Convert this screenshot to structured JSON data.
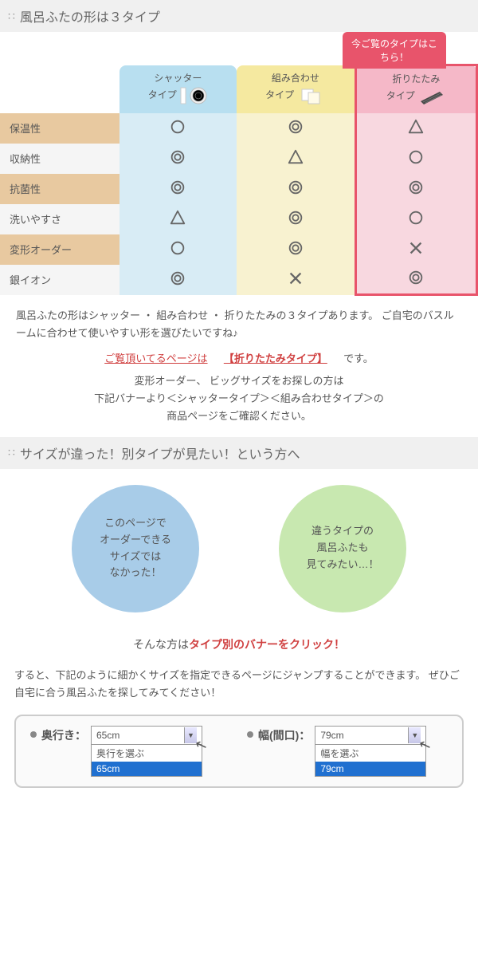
{
  "section1": {
    "title": "風呂ふたの形は３タイプ"
  },
  "callout": "今ご覧のタイプはこちら！",
  "columns": {
    "c1": "シャッター\nタイプ",
    "c2": "組み合わせ\nタイプ",
    "c3": "折りたたみ\nタイプ"
  },
  "rows": [
    {
      "label": "保温性",
      "v": [
        "single",
        "double",
        "tri"
      ]
    },
    {
      "label": "収納性",
      "v": [
        "double",
        "tri",
        "single"
      ]
    },
    {
      "label": "抗菌性",
      "v": [
        "double",
        "double",
        "double"
      ]
    },
    {
      "label": "洗いやすさ",
      "v": [
        "tri",
        "double",
        "single"
      ]
    },
    {
      "label": "変形オーダー",
      "v": [
        "single",
        "double",
        "cross"
      ]
    },
    {
      "label": "銀イオン",
      "v": [
        "double",
        "cross",
        "double"
      ]
    }
  ],
  "desc1": "風呂ふたの形はシャッター ・ 組み合わせ ・ 折りたたみの３タイプあります。 ご自宅のバスルームに合わせて使いやすい形を選びたいですね♪",
  "desc2_a": "ご覧頂いてるページは",
  "desc2_b": "【折りたたみタイプ】",
  "desc2_c": "です。",
  "desc3": "変形オーダー、 ビッグサイズをお探しの方は\n下記バナーより＜シャッタータイプ＞＜組み合わせタイプ＞の\n商品ページをご確認ください。",
  "section2": {
    "title": "サイズが違った！別タイプが見たい！という方へ"
  },
  "circle1": "このページで\nオーダーできる\nサイズでは\nなかった！",
  "circle2": "違うタイプの\n風呂ふたも\n見てみたい…！",
  "banner_a": "そんな方は",
  "banner_b": "タイプ別のバナーをクリック！",
  "jump": "すると、下記のように細かくサイズを指定できるページにジャンプすることができます。 ぜひご自宅に合う風呂ふたを探してみてください！",
  "sel": {
    "depth_label": "奥行き：",
    "depth_val": "65cm",
    "depth_ph": "奥行を選ぶ",
    "depth_opt": "65cm",
    "width_label": "幅(間口)：",
    "width_val": "79cm",
    "width_ph": "幅を選ぶ",
    "width_opt": "79cm"
  },
  "colors": {
    "accent": "#e8546b",
    "col1": "#b8dff0",
    "col2": "#f5e9a0",
    "col3": "#f5b8c8"
  }
}
